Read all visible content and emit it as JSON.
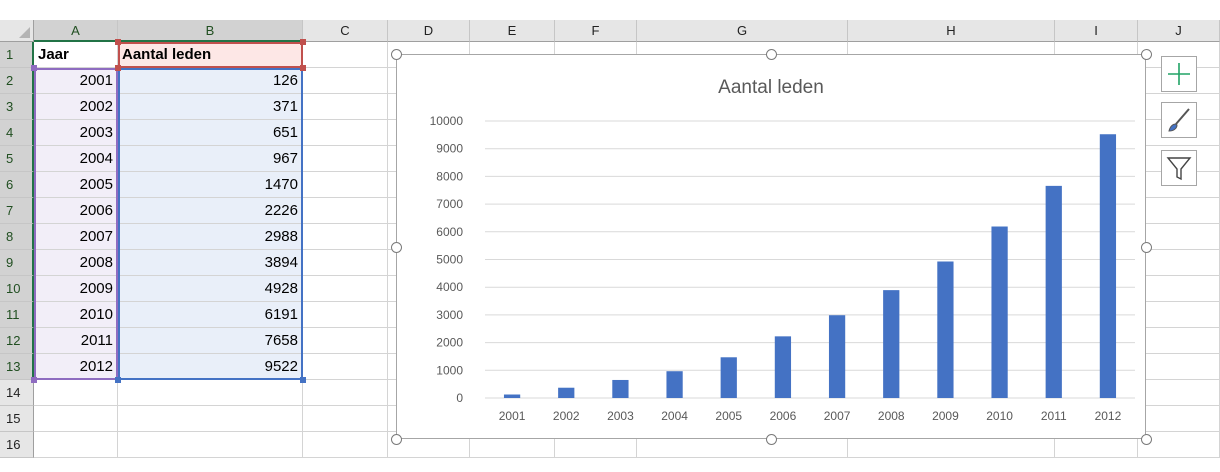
{
  "columns": [
    "A",
    "B",
    "C",
    "D",
    "E",
    "F",
    "G",
    "H",
    "I",
    "J"
  ],
  "rows": [
    "1",
    "2",
    "3",
    "4",
    "5",
    "6",
    "7",
    "8",
    "9",
    "10",
    "11",
    "12",
    "13",
    "14",
    "15",
    "16"
  ],
  "cells": {
    "header_a": "Jaar",
    "header_b": "Aantal leden",
    "years": [
      "2001",
      "2002",
      "2003",
      "2004",
      "2005",
      "2006",
      "2007",
      "2008",
      "2009",
      "2010",
      "2011",
      "2012"
    ],
    "members": [
      "126",
      "371",
      "651",
      "967",
      "1470",
      "2226",
      "2988",
      "3894",
      "4928",
      "6191",
      "7658",
      "9522"
    ]
  },
  "side_buttons": [
    {
      "icon": "plus-icon"
    },
    {
      "icon": "brush-icon"
    },
    {
      "icon": "filter-icon"
    }
  ],
  "colors": {
    "bar": "#4472c4",
    "range_a_border": "#8e6cc0",
    "range_b_border": "#4472c4",
    "header_b_border": "#c0504d",
    "selected_header": "#217346"
  },
  "chart_data": {
    "type": "bar",
    "title": "Aantal leden",
    "categories": [
      "2001",
      "2002",
      "2003",
      "2004",
      "2005",
      "2006",
      "2007",
      "2008",
      "2009",
      "2010",
      "2011",
      "2012"
    ],
    "series": [
      {
        "values": [
          126,
          371,
          651,
          967,
          1470,
          2226,
          2988,
          3894,
          4928,
          6191,
          7658,
          9522
        ]
      }
    ],
    "ylim": [
      0,
      10000
    ],
    "yticks": [
      "0",
      "1000",
      "2000",
      "3000",
      "4000",
      "5000",
      "6000",
      "7000",
      "8000",
      "9000",
      "10000"
    ],
    "xlabel": "",
    "ylabel": "",
    "grid": true,
    "legend": "none"
  }
}
